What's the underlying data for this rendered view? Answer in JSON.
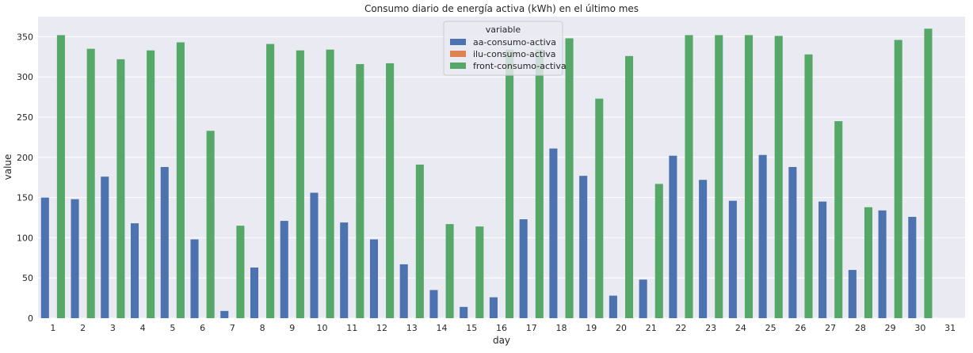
{
  "chart_data": {
    "type": "bar",
    "title": "Consumo diario de energía activa (kWh) en el último mes",
    "xlabel": "day",
    "ylabel": "value",
    "ylim": [
      0,
      375
    ],
    "yticks": [
      0,
      50,
      100,
      150,
      200,
      250,
      300,
      350
    ],
    "grid": true,
    "legend_title": "variable",
    "legend_position": "top-center",
    "categories": [
      "1",
      "2",
      "3",
      "4",
      "5",
      "6",
      "7",
      "8",
      "9",
      "10",
      "11",
      "12",
      "13",
      "14",
      "15",
      "16",
      "17",
      "18",
      "19",
      "20",
      "21",
      "22",
      "23",
      "24",
      "25",
      "26",
      "27",
      "28",
      "29",
      "30",
      "31"
    ],
    "series": [
      {
        "name": "aa-consumo-activa",
        "color": "#4c72b0",
        "values": [
          150,
          148,
          176,
          118,
          188,
          98,
          9,
          63,
          121,
          156,
          119,
          98,
          67,
          35,
          14,
          26,
          123,
          211,
          177,
          28,
          48,
          202,
          172,
          146,
          203,
          188,
          145,
          60,
          134,
          126,
          0
        ]
      },
      {
        "name": "ilu-consumo-activa",
        "color": "#dd8452",
        "values": [
          0,
          0,
          0,
          0,
          0,
          0,
          0,
          0,
          0,
          0,
          0,
          0,
          0,
          0,
          0,
          0,
          0,
          0,
          0,
          0,
          0,
          0,
          0,
          0,
          0,
          0,
          0,
          0,
          0,
          0,
          0
        ]
      },
      {
        "name": "front-consumo-activa",
        "color": "#55a868",
        "values": [
          352,
          335,
          322,
          333,
          343,
          233,
          115,
          341,
          333,
          334,
          316,
          317,
          191,
          117,
          114,
          334,
          334,
          348,
          273,
          326,
          167,
          352,
          352,
          352,
          351,
          328,
          245,
          138,
          346,
          360,
          0
        ]
      }
    ]
  }
}
